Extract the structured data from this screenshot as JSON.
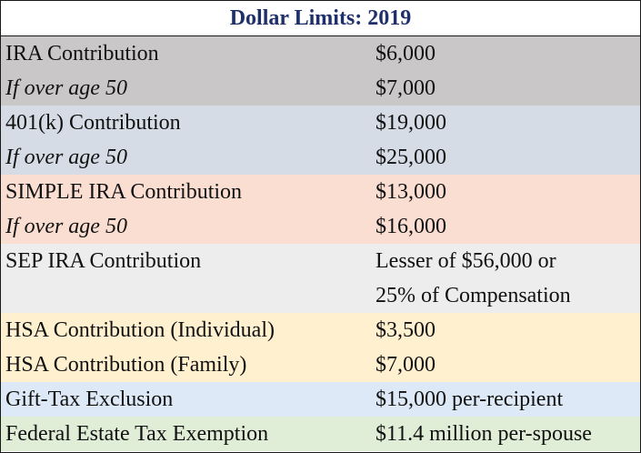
{
  "title": "Dollar Limits: 2019",
  "rows": [
    {
      "label": "IRA Contribution",
      "value": "$6,000",
      "italic": false,
      "bg": "#c9c7c7"
    },
    {
      "label": "If over age 50",
      "value": "$7,000",
      "italic": true,
      "bg": "#c9c7c7"
    },
    {
      "label": "401(k) Contribution",
      "value": "$19,000",
      "italic": false,
      "bg": "#d5dce6"
    },
    {
      "label": "If over age 50",
      "value": "$25,000",
      "italic": true,
      "bg": "#d5dce6"
    },
    {
      "label": "SIMPLE IRA Contribution",
      "value": "$13,000",
      "italic": false,
      "bg": "#fbded2"
    },
    {
      "label": "If over age 50",
      "value": "$16,000",
      "italic": true,
      "bg": "#fbded2"
    },
    {
      "label": "SEP IRA Contribution",
      "value_lines": [
        "Lesser of $56,000 or",
        "25% of Compensation"
      ],
      "italic": false,
      "bg": "#ededed"
    },
    {
      "label": "HSA Contribution (Individual)",
      "value": "$3,500",
      "italic": false,
      "bg": "#fff1cf"
    },
    {
      "label": "HSA Contribution (Family)",
      "value": "$7,000",
      "italic": false,
      "bg": "#fff1cf"
    },
    {
      "label": "Gift-Tax Exclusion",
      "value": "$15,000 per-recipient",
      "italic": false,
      "bg": "#dde9f6"
    },
    {
      "label": "Federal Estate Tax Exemption",
      "value": "$11.4 million per-spouse",
      "italic": false,
      "bg": "#e0eed8"
    }
  ]
}
